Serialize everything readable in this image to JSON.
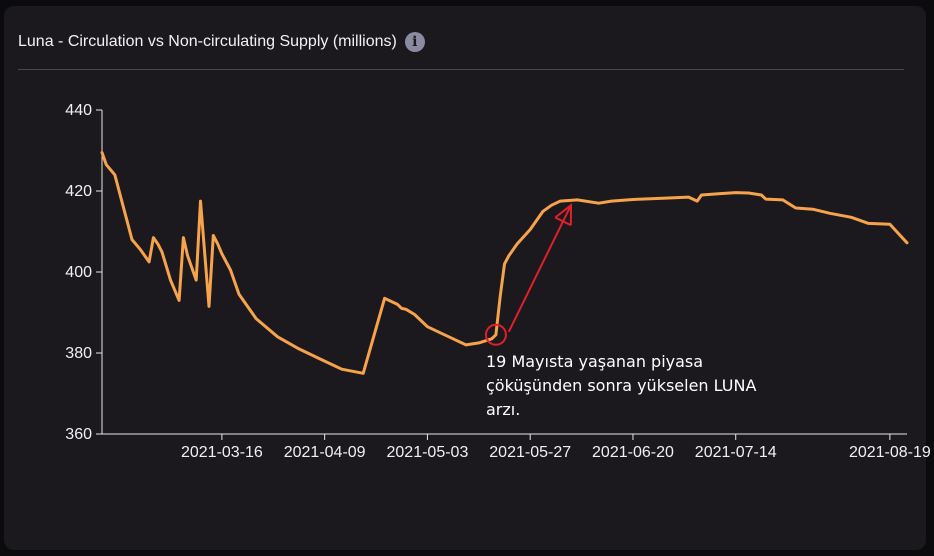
{
  "header": {
    "title": "Luna - Circulation vs Non-circulating Supply (millions)",
    "info_icon": "info-icon"
  },
  "colors": {
    "line": "#f6a34b",
    "annotation": "#e0202a",
    "background": "#1b191e"
  },
  "annotation": {
    "lines": [
      "19 Mayısta yaşanan piyasa",
      "çöküşünden sonra yükselen LUNA",
      "arzı."
    ],
    "circle_date": "2021-05-19",
    "arrow_from_date": "2021-05-22",
    "arrow_to_date": "2021-06-06"
  },
  "chart_data": {
    "type": "line",
    "title": "Luna - Circulation vs Non-circulating Supply (millions)",
    "xlabel": "",
    "ylabel": "",
    "ylim": [
      360,
      440
    ],
    "yticks": [
      360,
      380,
      400,
      420,
      440
    ],
    "xticks": [
      "2021-03-16",
      "2021-04-09",
      "2021-05-03",
      "2021-05-27",
      "2021-06-20",
      "2021-07-14",
      "2021-08-19"
    ],
    "xrange": [
      "2021-02-16",
      "2021-08-23"
    ],
    "grid": false,
    "series": [
      {
        "x": [
          "2021-02-16",
          "2021-02-17",
          "2021-02-19",
          "2021-02-21",
          "2021-02-23",
          "2021-02-25",
          "2021-02-27",
          "2021-02-28",
          "2021-03-01",
          "2021-03-02",
          "2021-03-04",
          "2021-03-06",
          "2021-03-07",
          "2021-03-08",
          "2021-03-10",
          "2021-03-11",
          "2021-03-13",
          "2021-03-14",
          "2021-03-15",
          "2021-03-16",
          "2021-03-18",
          "2021-03-20",
          "2021-03-24",
          "2021-03-29",
          "2021-04-03",
          "2021-04-08",
          "2021-04-13",
          "2021-04-18",
          "2021-04-23",
          "2021-04-26",
          "2021-04-27",
          "2021-04-28",
          "2021-04-30",
          "2021-05-03",
          "2021-05-06",
          "2021-05-09",
          "2021-05-12",
          "2021-05-15",
          "2021-05-18",
          "2021-05-19",
          "2021-05-20",
          "2021-05-21",
          "2021-05-22",
          "2021-05-24",
          "2021-05-27",
          "2021-05-30",
          "2021-06-01",
          "2021-06-03",
          "2021-06-07",
          "2021-06-12",
          "2021-06-15",
          "2021-06-20",
          "2021-06-27",
          "2021-07-03",
          "2021-07-05",
          "2021-07-06",
          "2021-07-10",
          "2021-07-14",
          "2021-07-17",
          "2021-07-20",
          "2021-07-21",
          "2021-07-25",
          "2021-07-28",
          "2021-08-01",
          "2021-08-05",
          "2021-08-10",
          "2021-08-14",
          "2021-08-19",
          "2021-08-21",
          "2021-08-23"
        ],
        "values": [
          429.5,
          426.5,
          424,
          416,
          408,
          405.5,
          402.5,
          408.5,
          407,
          405,
          398,
          393,
          408.5,
          404,
          398,
          417.5,
          391.5,
          409,
          407,
          404.5,
          400.5,
          394.5,
          388.5,
          384,
          381,
          378.5,
          376,
          375,
          393.5,
          392,
          391,
          390.8,
          389.5,
          386.5,
          385,
          383.5,
          382,
          382.5,
          383.5,
          384.5,
          394,
          402,
          404,
          407,
          410.5,
          415,
          416.5,
          417.5,
          417.8,
          417,
          417.5,
          417.9,
          418.2,
          418.5,
          417.5,
          419,
          419.3,
          419.6,
          419.5,
          419,
          418,
          417.8,
          415.8,
          415.5,
          414.5,
          413.5,
          412,
          411.8,
          409.5,
          407.2
        ]
      }
    ]
  }
}
